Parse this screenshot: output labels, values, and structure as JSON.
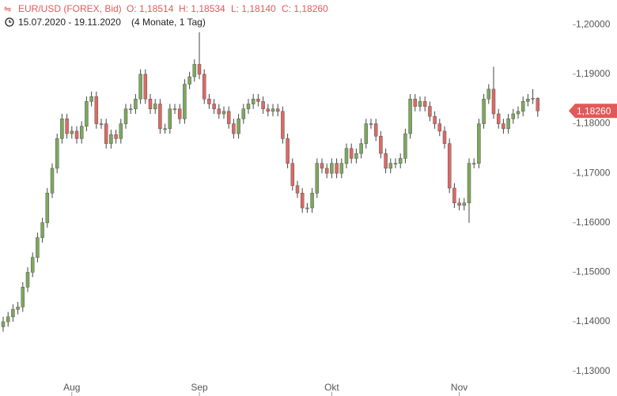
{
  "chart_data": {
    "type": "candlestick",
    "header": {
      "symbol": "EUR/USD (FOREX, Bid)",
      "open": "O: 1,18514",
      "high": "H: 1,18534",
      "low": "L: 1,18140",
      "close": "C: 1,18260",
      "range": "15.07.2020 - 19.11.2020",
      "span": "(4 Monate, 1 Tag)"
    },
    "last_price_label": "1,18260",
    "categories": [
      null,
      null,
      null,
      null,
      null,
      null,
      null,
      null,
      null,
      null,
      null,
      null,
      null,
      null,
      "Aug",
      null,
      null,
      null,
      null,
      null,
      null,
      null,
      null,
      null,
      null,
      null,
      null,
      null,
      null,
      null,
      null,
      null,
      null,
      null,
      null,
      null,
      null,
      null,
      null,
      null,
      "Sep",
      null,
      null,
      null,
      null,
      null,
      null,
      null,
      null,
      null,
      null,
      null,
      null,
      null,
      null,
      null,
      null,
      null,
      null,
      null,
      null,
      null,
      null,
      null,
      null,
      null,
      null,
      "Okt",
      null,
      null,
      null,
      null,
      null,
      null,
      null,
      null,
      null,
      null,
      null,
      null,
      null,
      null,
      null,
      null,
      null,
      null,
      null,
      null,
      null,
      null,
      null,
      null,
      null,
      "Nov",
      null,
      null,
      null,
      null,
      null,
      null,
      null,
      null,
      null,
      null,
      null,
      null,
      null,
      null,
      null,
      null
    ],
    "open": [
      1.139,
      1.14,
      1.141,
      1.1425,
      1.143,
      1.147,
      1.15,
      1.153,
      1.157,
      1.16,
      1.166,
      1.171,
      1.177,
      1.181,
      1.178,
      1.1785,
      1.177,
      1.1795,
      1.1845,
      1.1855,
      1.18,
      1.18,
      1.176,
      1.1778,
      1.177,
      1.18,
      1.183,
      1.183,
      1.185,
      1.19,
      1.185,
      1.183,
      1.184,
      1.179,
      1.179,
      1.183,
      1.183,
      1.181,
      1.188,
      1.1895,
      1.192,
      1.19,
      1.185,
      1.184,
      1.183,
      1.182,
      1.1825,
      1.18,
      1.178,
      1.181,
      1.183,
      1.184,
      1.185,
      1.1845,
      1.183,
      1.1825,
      1.183,
      1.1825,
      1.177,
      1.172,
      1.1675,
      1.166,
      1.163,
      1.163,
      1.166,
      1.172,
      1.171,
      1.17,
      1.172,
      1.17,
      1.172,
      1.175,
      1.173,
      1.174,
      1.176,
      1.18,
      1.18,
      1.1775,
      1.174,
      1.171,
      1.172,
      1.172,
      1.173,
      1.178,
      1.185,
      1.1835,
      1.1845,
      1.1835,
      1.1815,
      1.18,
      1.1785,
      1.176,
      1.167,
      1.164,
      1.1635,
      1.164,
      1.172,
      1.172,
      1.18,
      1.185,
      1.187,
      1.182,
      1.18,
      1.179,
      1.181,
      1.182,
      1.1825,
      1.1845,
      1.185,
      1.18514
    ],
    "high": [
      1.141,
      1.142,
      1.1435,
      1.144,
      1.148,
      1.151,
      1.154,
      1.158,
      1.161,
      1.167,
      1.172,
      1.178,
      1.182,
      1.182,
      1.1795,
      1.1795,
      1.1805,
      1.1855,
      1.1865,
      1.1865,
      1.181,
      1.181,
      1.1788,
      1.1788,
      1.181,
      1.184,
      1.184,
      1.186,
      1.191,
      1.191,
      1.186,
      1.185,
      1.185,
      1.18,
      1.184,
      1.184,
      1.184,
      1.189,
      1.1905,
      1.193,
      1.1985,
      1.191,
      1.186,
      1.185,
      1.184,
      1.1835,
      1.1835,
      1.181,
      1.182,
      1.184,
      1.185,
      1.186,
      1.186,
      1.1855,
      1.184,
      1.184,
      1.184,
      1.1835,
      1.178,
      1.173,
      1.1685,
      1.167,
      1.164,
      1.167,
      1.173,
      1.173,
      1.172,
      1.173,
      1.173,
      1.173,
      1.176,
      1.176,
      1.175,
      1.177,
      1.181,
      1.181,
      1.181,
      1.1785,
      1.175,
      1.173,
      1.173,
      1.174,
      1.179,
      1.186,
      1.186,
      1.1855,
      1.1855,
      1.1845,
      1.1825,
      1.181,
      1.1795,
      1.177,
      1.168,
      1.165,
      1.165,
      1.173,
      1.173,
      1.181,
      1.186,
      1.188,
      1.1915,
      1.183,
      1.181,
      1.182,
      1.183,
      1.1835,
      1.1855,
      1.186,
      1.187,
      1.18534
    ],
    "low": [
      1.138,
      1.139,
      1.14,
      1.1415,
      1.142,
      1.146,
      1.149,
      1.152,
      1.156,
      1.159,
      1.165,
      1.17,
      1.176,
      1.177,
      1.177,
      1.176,
      1.176,
      1.1785,
      1.1835,
      1.179,
      1.179,
      1.175,
      1.175,
      1.176,
      1.176,
      1.179,
      1.182,
      1.182,
      1.184,
      1.184,
      1.182,
      1.182,
      1.178,
      1.178,
      1.178,
      1.182,
      1.18,
      1.18,
      1.187,
      1.1885,
      1.189,
      1.184,
      1.183,
      1.182,
      1.181,
      1.181,
      1.179,
      1.177,
      1.177,
      1.18,
      1.182,
      1.183,
      1.1835,
      1.182,
      1.1815,
      1.1815,
      1.1815,
      1.176,
      1.171,
      1.1665,
      1.165,
      1.162,
      1.162,
      1.162,
      1.165,
      1.17,
      1.169,
      1.169,
      1.169,
      1.169,
      1.171,
      1.172,
      1.172,
      1.173,
      1.175,
      1.179,
      1.1765,
      1.173,
      1.17,
      1.17,
      1.171,
      1.171,
      1.172,
      1.177,
      1.1825,
      1.1825,
      1.1825,
      1.1805,
      1.179,
      1.1775,
      1.175,
      1.166,
      1.163,
      1.1625,
      1.1625,
      1.16,
      1.171,
      1.171,
      1.179,
      1.184,
      1.181,
      1.179,
      1.178,
      1.178,
      1.18,
      1.181,
      1.1815,
      1.1835,
      1.184,
      1.1814
    ],
    "close": [
      1.14,
      1.141,
      1.1425,
      1.143,
      1.147,
      1.15,
      1.153,
      1.157,
      1.16,
      1.166,
      1.171,
      1.177,
      1.181,
      1.178,
      1.1785,
      1.177,
      1.1795,
      1.1845,
      1.1855,
      1.18,
      1.18,
      1.176,
      1.1778,
      1.177,
      1.18,
      1.183,
      1.183,
      1.185,
      1.19,
      1.185,
      1.183,
      1.184,
      1.179,
      1.179,
      1.183,
      1.183,
      1.181,
      1.188,
      1.1895,
      1.192,
      1.19,
      1.185,
      1.184,
      1.183,
      1.182,
      1.1825,
      1.18,
      1.178,
      1.181,
      1.183,
      1.184,
      1.185,
      1.1845,
      1.183,
      1.1825,
      1.183,
      1.1825,
      1.177,
      1.172,
      1.1675,
      1.166,
      1.163,
      1.163,
      1.166,
      1.172,
      1.171,
      1.17,
      1.172,
      1.17,
      1.172,
      1.175,
      1.173,
      1.174,
      1.176,
      1.18,
      1.18,
      1.1775,
      1.174,
      1.171,
      1.172,
      1.172,
      1.173,
      1.178,
      1.185,
      1.1835,
      1.1845,
      1.1835,
      1.1815,
      1.18,
      1.1785,
      1.176,
      1.167,
      1.164,
      1.1635,
      1.164,
      1.172,
      1.172,
      1.18,
      1.185,
      1.187,
      1.182,
      1.18,
      1.179,
      1.181,
      1.182,
      1.1825,
      1.1845,
      1.185,
      1.18514,
      1.1826
    ],
    "up_color": "#7da85c",
    "down_color": "#dc6a64",
    "wick_color": "#444444",
    "label_color": "#e05a5a",
    "ylim": [
      1.125,
      1.205
    ],
    "yticks": [
      {
        "value": 1.2,
        "label": "1,20000"
      },
      {
        "value": 1.19,
        "label": "1,19000"
      },
      {
        "value": 1.18,
        "label": "1,18000"
      },
      {
        "value": 1.17,
        "label": "1,17000"
      },
      {
        "value": 1.16,
        "label": "1,16000"
      },
      {
        "value": 1.15,
        "label": "1,15000"
      },
      {
        "value": 1.14,
        "label": "1,14000"
      },
      {
        "value": 1.13,
        "label": "1,13000"
      }
    ]
  }
}
